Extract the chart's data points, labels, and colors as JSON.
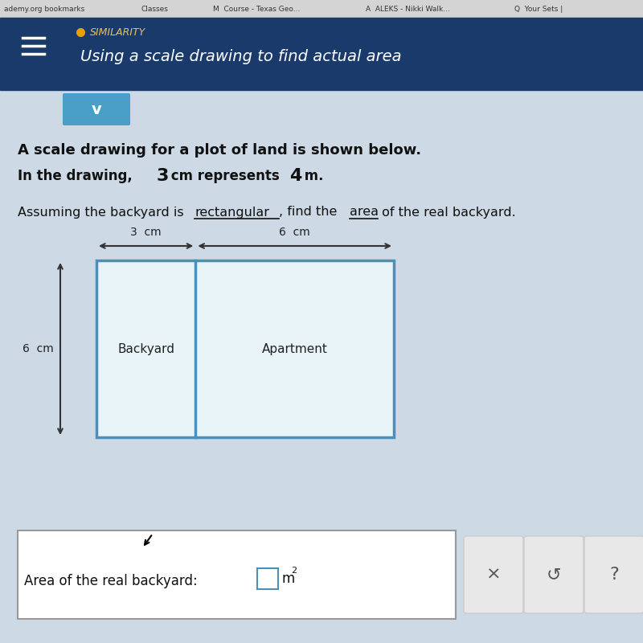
{
  "bg_color": "#cdd9e5",
  "header_bg": "#1a3a6b",
  "header_text": "Using a scale drawing to find actual area",
  "header_sub": "SIMILARITY",
  "problem_line1": "A scale drawing for a plot of land is shown below.",
  "problem_line2a": "In the drawing, ",
  "problem_line2b": "3",
  "problem_line2c": " cm represents ",
  "problem_line2d": "4",
  "problem_line2e": " m.",
  "problem_line3a": "Assuming the backyard is ",
  "problem_line3b": "rectangular",
  "problem_line3c": ", find the ",
  "problem_line3d": "area",
  "problem_line3e": " of the real backyard.",
  "box_color": "#4a90b8",
  "box_fill": "#e8f4f8",
  "label_backyard": "Backyard",
  "label_apartment": "Apartment",
  "dim_top_left": "3  cm",
  "dim_top_right": "6  cm",
  "dim_left": "6  cm",
  "answer_label": "Area of the real backyard:",
  "answer_unit": "m",
  "answer_exp": "2",
  "arrow_color": "#333333",
  "text_color": "#111111",
  "tab_bg": "#d4d4d4",
  "tab_text": "#333333",
  "chevron_bg": "#4a9fc8",
  "footer_bg": "#f0f0f0",
  "btn_bg": "#e8e8e8",
  "btn_border": "#cccccc"
}
